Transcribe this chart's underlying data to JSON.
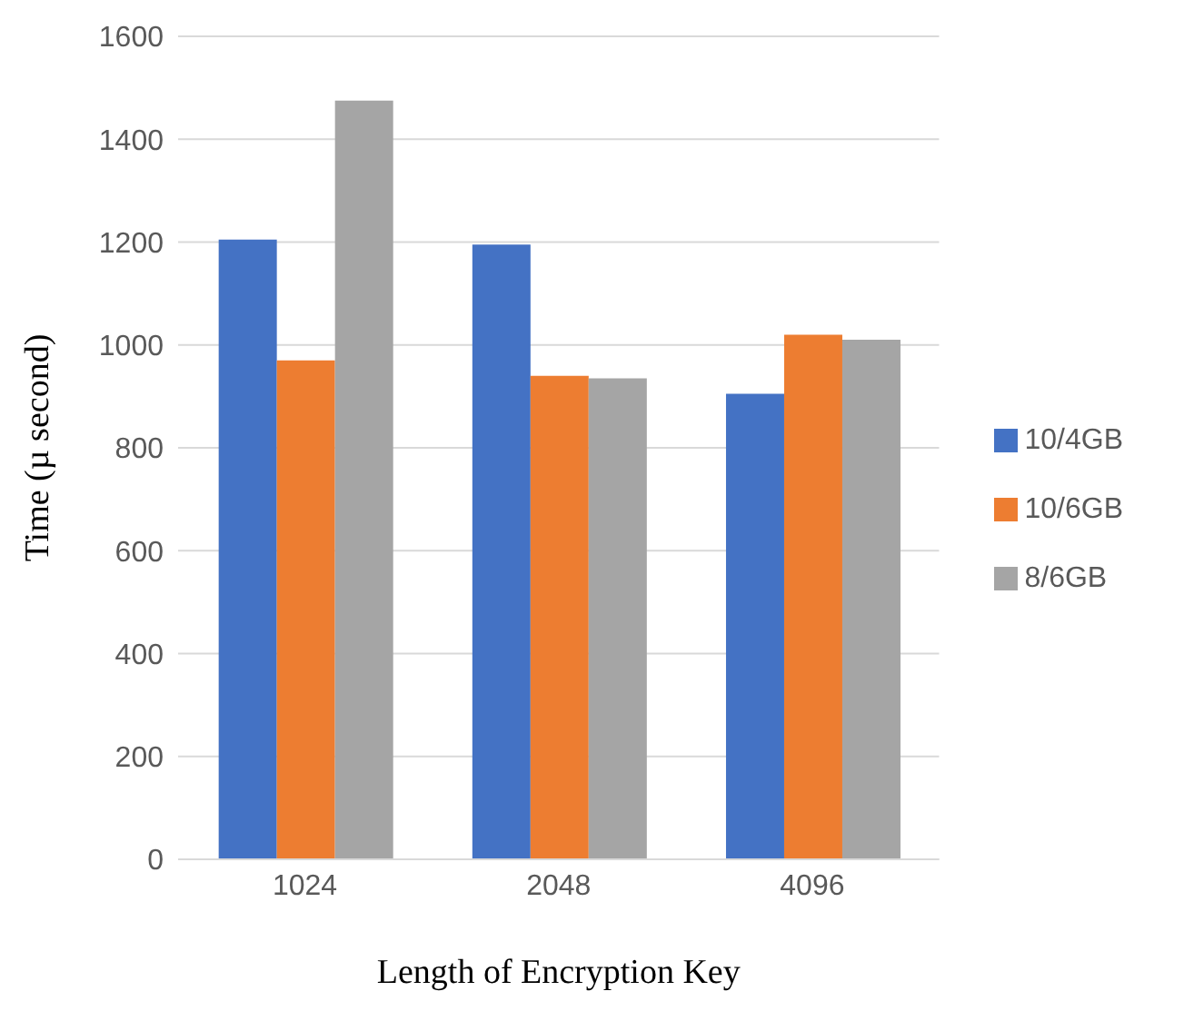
{
  "chart_data": {
    "type": "bar",
    "xlabel": "Length of Encryption Key",
    "ylabel": "Time (µ second)",
    "categories": [
      "1024",
      "2048",
      "4096"
    ],
    "series": [
      {
        "name": "10/4GB",
        "color": "#4472c4",
        "values": [
          1205,
          1195,
          905
        ]
      },
      {
        "name": "10/6GB",
        "color": "#ed7d31",
        "values": [
          970,
          940,
          1020
        ]
      },
      {
        "name": "8/6GB",
        "color": "#a5a5a5",
        "values": [
          1475,
          935,
          1010
        ]
      }
    ],
    "ylim": [
      0,
      1600
    ],
    "yticks": [
      0,
      200,
      400,
      600,
      800,
      1000,
      1200,
      1400,
      1600
    ],
    "grid": "y",
    "legend": "right"
  }
}
